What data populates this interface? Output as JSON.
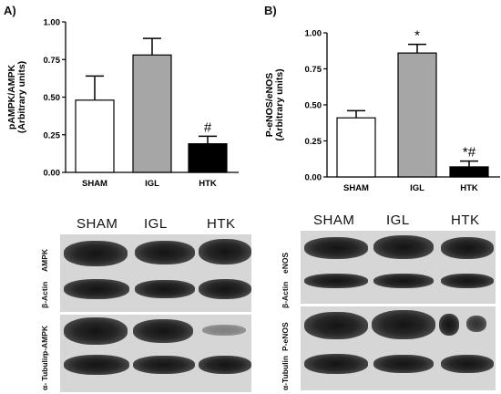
{
  "panels": {
    "a_label": "A)",
    "b_label": "B)"
  },
  "chart_data": [
    {
      "type": "bar",
      "categories": [
        "SHAM",
        "IGL",
        "HTK"
      ],
      "values": [
        0.48,
        0.78,
        0.19
      ],
      "errors": [
        0.16,
        0.11,
        0.05
      ],
      "annotations": [
        "",
        "",
        "#"
      ],
      "ylabel_line1": "pAMPK/AMPK",
      "ylabel_line2": "(Arbitrary units)",
      "ylim": [
        0,
        1.0
      ],
      "yticks": [
        "0.00",
        "0.25",
        "0.50",
        "0.75",
        "1.00"
      ],
      "colors": [
        "#ffffff",
        "#a6a6a6",
        "#000000"
      ]
    },
    {
      "type": "bar",
      "categories": [
        "SHAM",
        "IGL",
        "HTK"
      ],
      "values": [
        0.41,
        0.86,
        0.07
      ],
      "errors": [
        0.05,
        0.06,
        0.04
      ],
      "annotations": [
        "",
        "*",
        "*#"
      ],
      "ylabel_line1": "P-eNOS/eNOS",
      "ylabel_line2": "(Arbitrary units)",
      "ylim": [
        0,
        1.0
      ],
      "yticks": [
        "0.00",
        "0.25",
        "0.50",
        "0.75",
        "1.00"
      ],
      "colors": [
        "#ffffff",
        "#a6a6a6",
        "#000000"
      ]
    }
  ],
  "blots": {
    "a": {
      "headers": [
        "SHAM",
        "IGL",
        "HTK"
      ],
      "rows": [
        "AMPK",
        "β-Actin",
        "p-AMPK",
        "α- Tubulin"
      ]
    },
    "b": {
      "headers": [
        "SHAM",
        "IGL",
        "HTK"
      ],
      "rows": [
        "eNOS",
        "β-Actin",
        "P-eNOS",
        "α-Tubulin"
      ]
    }
  }
}
